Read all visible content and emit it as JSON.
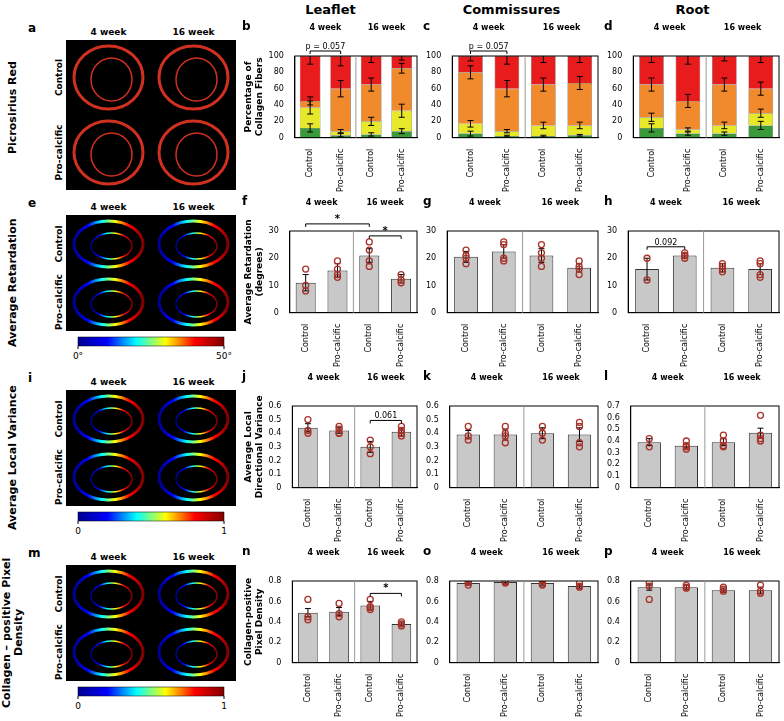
{
  "column_titles": [
    "Leaflet",
    "Commissures",
    "Root"
  ],
  "image_panels": [
    {
      "letter": "a",
      "row_label": "Picrosirius Red",
      "columns": [
        "4 week",
        "16 week"
      ],
      "rows": [
        "Control",
        "Pro-calcific"
      ]
    },
    {
      "letter": "e",
      "row_label": "Average Retardation",
      "columns": [
        "4 week",
        "16 week"
      ],
      "rows": [
        "Control",
        "Pro-calcific"
      ],
      "colorbar": {
        "range": [
          0,
          50
        ],
        "ticks": [
          {
            "value": 0,
            "label": "0°"
          },
          {
            "value": 50,
            "label": "50°"
          }
        ]
      }
    },
    {
      "letter": "i",
      "row_label": "Average Local Variance",
      "columns": [
        "4 week",
        "16 week"
      ],
      "rows": [
        "Control",
        "Pro-calcific"
      ],
      "colorbar": {
        "range": [
          0,
          1
        ],
        "ticks": [
          0,
          1
        ]
      }
    },
    {
      "letter": "m",
      "row_label": "Collagen – positive Pixel Density",
      "columns": [
        "4 week",
        "16 week"
      ],
      "rows": [
        "Control",
        "Pro-calcific"
      ],
      "colorbar": {
        "range": [
          0,
          1
        ],
        "ticks": [
          0,
          1
        ]
      }
    }
  ],
  "chart_data": [
    {
      "letter": "b",
      "type": "bar",
      "stacked": true,
      "grid": false,
      "ylabel": "Percentage of Collagen Fibers",
      "categories": [
        "Control",
        "Pro-calcific",
        "Control",
        "Pro-calcific"
      ],
      "group_labels": [
        "4 week",
        "16 week"
      ],
      "ylim": [
        0,
        100
      ],
      "yticks": [
        0,
        20,
        40,
        60,
        80,
        100
      ],
      "series": [
        {
          "color": "#3a9a3a",
          "values": [
            12,
            3,
            4,
            8
          ],
          "errors": [
            5,
            2,
            2,
            3
          ]
        },
        {
          "color": "#e8e82a",
          "values": [
            25,
            5,
            16,
            25
          ],
          "errors": [
            8,
            2,
            5,
            8
          ]
        },
        {
          "color": "#f08a2c",
          "values": [
            8,
            52,
            45,
            52
          ],
          "errors": [
            5,
            10,
            8,
            6
          ]
        },
        {
          "color": "#e81c1c",
          "values": [
            55,
            40,
            35,
            15
          ],
          "errors": [
            10,
            12,
            8,
            5
          ]
        }
      ],
      "annotations": [
        {
          "text": "p = 0.057",
          "from": 0,
          "to": 1
        }
      ]
    },
    {
      "letter": "c",
      "type": "bar",
      "stacked": true,
      "grid": false,
      "categories": [
        "Control",
        "Pro-calcific",
        "Control",
        "Pro-calcific"
      ],
      "group_labels": [
        "4 week",
        "16 week"
      ],
      "ylim": [
        0,
        100
      ],
      "yticks": [
        0,
        20,
        40,
        60,
        80,
        100
      ],
      "series": [
        {
          "color": "#3a9a3a",
          "values": [
            5,
            2,
            2,
            3
          ],
          "errors": [
            3,
            1,
            1,
            1
          ]
        },
        {
          "color": "#e8e82a",
          "values": [
            12,
            6,
            13,
            12
          ],
          "errors": [
            4,
            2,
            4,
            4
          ]
        },
        {
          "color": "#f08a2c",
          "values": [
            63,
            52,
            50,
            52
          ],
          "errors": [
            8,
            10,
            8,
            8
          ]
        },
        {
          "color": "#e81c1c",
          "values": [
            20,
            40,
            35,
            33
          ],
          "errors": [
            6,
            10,
            8,
            8
          ]
        }
      ],
      "annotations": [
        {
          "text": "p = 0.057",
          "from": 0,
          "to": 1
        }
      ]
    },
    {
      "letter": "d",
      "type": "bar",
      "stacked": true,
      "grid": false,
      "categories": [
        "Control",
        "Pro-calcific",
        "Control",
        "Pro-calcific"
      ],
      "group_labels": [
        "4 week",
        "16 week"
      ],
      "ylim": [
        0,
        100
      ],
      "yticks": [
        0,
        20,
        40,
        60,
        80,
        100
      ],
      "series": [
        {
          "color": "#3a9a3a",
          "values": [
            12,
            5,
            5,
            15
          ],
          "errors": [
            5,
            2,
            2,
            5
          ]
        },
        {
          "color": "#e8e82a",
          "values": [
            13,
            5,
            10,
            15
          ],
          "errors": [
            5,
            2,
            4,
            5
          ]
        },
        {
          "color": "#f08a2c",
          "values": [
            40,
            35,
            50,
            30
          ],
          "errors": [
            8,
            8,
            8,
            8
          ]
        },
        {
          "color": "#e81c1c",
          "values": [
            35,
            55,
            35,
            40
          ],
          "errors": [
            8,
            10,
            6,
            8
          ]
        }
      ]
    },
    {
      "letter": "f",
      "type": "bar",
      "grid": false,
      "color": "#c8c8c8",
      "ylabel": "Average Retardation (degrees)",
      "categories": [
        "Control",
        "Pro-calcific",
        "Control",
        "Pro-calcific"
      ],
      "group_labels": [
        "4 week",
        "16 week"
      ],
      "ylim": [
        0,
        30
      ],
      "yticks": [
        0,
        10,
        20,
        30
      ],
      "values": [
        11,
        15.5,
        21,
        12.5
      ],
      "errors": [
        3,
        2.5,
        2.5,
        1.5
      ],
      "points": [
        [
          16,
          8,
          10
        ],
        [
          19,
          16,
          13,
          14
        ],
        [
          26,
          23,
          19,
          17
        ],
        [
          14,
          12,
          11
        ]
      ],
      "annotations": [
        {
          "text": "*",
          "from": 0,
          "to": 2
        },
        {
          "text": "*",
          "from": 2,
          "to": 3
        }
      ]
    },
    {
      "letter": "g",
      "type": "bar",
      "grid": false,
      "color": "#c8c8c8",
      "categories": [
        "Control",
        "Pro-calcific",
        "Control",
        "Pro-calcific"
      ],
      "group_labels": [
        "4 week",
        "16 week"
      ],
      "ylim": [
        0,
        30
      ],
      "yticks": [
        0,
        10,
        20,
        30
      ],
      "values": [
        20.5,
        22.5,
        21,
        16.5
      ],
      "errors": [
        2,
        2.5,
        2.5,
        1.5
      ],
      "points": [
        [
          18,
          20,
          23,
          21
        ],
        [
          20,
          26,
          25,
          19
        ],
        [
          17,
          25,
          22,
          20
        ],
        [
          14,
          17,
          19,
          16
        ]
      ]
    },
    {
      "letter": "h",
      "type": "bar",
      "grid": false,
      "color": "#c8c8c8",
      "categories": [
        "Control",
        "Pro-calcific",
        "Control",
        "Pro-calcific"
      ],
      "group_labels": [
        "4 week",
        "16 week"
      ],
      "ylim": [
        0,
        30
      ],
      "yticks": [
        0,
        10,
        20,
        30
      ],
      "values": [
        16,
        21,
        16.5,
        16
      ],
      "errors": [
        4,
        1,
        1.5,
        2
      ],
      "points": [
        [
          20,
          12
        ],
        [
          22,
          20,
          21,
          21
        ],
        [
          15,
          18,
          17,
          16
        ],
        [
          13,
          18,
          19,
          14
        ]
      ],
      "annotations": [
        {
          "text": "0.092",
          "from": 0,
          "to": 1
        }
      ]
    },
    {
      "letter": "j",
      "type": "bar",
      "grid": false,
      "color": "#c8c8c8",
      "ylabel": "Average Local Directional Variance",
      "categories": [
        "Control",
        "Pro-calcific",
        "Control",
        "Pro-calcific"
      ],
      "group_labels": [
        "4 week",
        "16 week"
      ],
      "ylim": [
        0,
        0.6
      ],
      "yticks": [
        0,
        0.1,
        0.2,
        0.3,
        0.4,
        0.5,
        0.6
      ],
      "values": [
        0.44,
        0.42,
        0.3,
        0.41
      ],
      "errors": [
        0.03,
        0.02,
        0.04,
        0.03
      ],
      "points": [
        [
          0.5,
          0.4,
          0.42
        ],
        [
          0.45,
          0.4,
          0.43,
          0.4
        ],
        [
          0.35,
          0.25,
          0.3
        ],
        [
          0.45,
          0.4,
          0.42,
          0.38
        ]
      ],
      "annotations": [
        {
          "text": "0.061",
          "from": 2,
          "to": 3
        }
      ]
    },
    {
      "letter": "k",
      "type": "bar",
      "grid": false,
      "color": "#c8c8c8",
      "categories": [
        "Control",
        "Pro-calcific",
        "Control",
        "Pro-calcific"
      ],
      "group_labels": [
        "4 week",
        "16 week"
      ],
      "ylim": [
        0,
        0.6
      ],
      "yticks": [
        0,
        0.1,
        0.2,
        0.3,
        0.4,
        0.5,
        0.6
      ],
      "values": [
        0.39,
        0.39,
        0.4,
        0.39
      ],
      "errors": [
        0.03,
        0.04,
        0.04,
        0.05
      ],
      "points": [
        [
          0.45,
          0.35,
          0.38
        ],
        [
          0.45,
          0.4,
          0.33,
          0.38
        ],
        [
          0.45,
          0.4,
          0.35
        ],
        [
          0.48,
          0.45,
          0.3,
          0.33
        ]
      ]
    },
    {
      "letter": "l",
      "type": "bar",
      "grid": false,
      "color": "#c8c8c8",
      "categories": [
        "Control",
        "Pro-calcific",
        "Control",
        "Pro-calcific"
      ],
      "group_labels": [
        "4 week",
        "16 week"
      ],
      "ylim": [
        0,
        0.7
      ],
      "yticks": [
        0,
        0.1,
        0.2,
        0.3,
        0.4,
        0.5,
        0.6,
        0.7
      ],
      "values": [
        0.39,
        0.36,
        0.39,
        0.47
      ],
      "errors": [
        0.03,
        0.02,
        0.03,
        0.04
      ],
      "points": [
        [
          0.42,
          0.35
        ],
        [
          0.4,
          0.36,
          0.35,
          0.33
        ],
        [
          0.45,
          0.4,
          0.36,
          0.35
        ],
        [
          0.62,
          0.45,
          0.42,
          0.4
        ]
      ]
    },
    {
      "letter": "n",
      "type": "bar",
      "grid": false,
      "color": "#c8c8c8",
      "ylabel": "Collagen-positive Pixel Density",
      "categories": [
        "Control",
        "Pro-calcific",
        "Control",
        "Pro-calcific"
      ],
      "group_labels": [
        "4 week",
        "16 week"
      ],
      "ylim": [
        0,
        0.8
      ],
      "yticks": [
        0,
        0.2,
        0.4,
        0.6,
        0.8
      ],
      "values": [
        0.49,
        0.5,
        0.56,
        0.38
      ],
      "errors": [
        0.04,
        0.04,
        0.04,
        0.02
      ],
      "points": [
        [
          0.62,
          0.45,
          0.42
        ],
        [
          0.58,
          0.48,
          0.45
        ],
        [
          0.62,
          0.55,
          0.52,
          0.54
        ],
        [
          0.4,
          0.38,
          0.36
        ]
      ],
      "annotations": [
        {
          "text": "*",
          "from": 2,
          "to": 3
        }
      ]
    },
    {
      "letter": "o",
      "type": "bar",
      "grid": false,
      "color": "#c8c8c8",
      "categories": [
        "Control",
        "Pro-calcific",
        "Control",
        "Pro-calcific"
      ],
      "group_labels": [
        "4 week",
        "16 week"
      ],
      "ylim": [
        0,
        0.8
      ],
      "yticks": [
        0,
        0.2,
        0.4,
        0.6,
        0.8
      ],
      "values": [
        0.78,
        0.79,
        0.78,
        0.75
      ],
      "errors": [
        0.02,
        0.02,
        0.02,
        0.02
      ],
      "points": [
        [
          0.8,
          0.76,
          0.79
        ],
        [
          0.8,
          0.78,
          0.79
        ],
        [
          0.8,
          0.76,
          0.77
        ],
        [
          0.78,
          0.74,
          0.75
        ]
      ]
    },
    {
      "letter": "p",
      "type": "bar",
      "grid": false,
      "color": "#c8c8c8",
      "categories": [
        "Control",
        "Pro-calcific",
        "Control",
        "Pro-calcific"
      ],
      "group_labels": [
        "4 week",
        "16 week"
      ],
      "ylim": [
        0,
        0.8
      ],
      "yticks": [
        0,
        0.2,
        0.4,
        0.6,
        0.8
      ],
      "values": [
        0.74,
        0.74,
        0.71,
        0.71
      ],
      "errors": [
        0.03,
        0.02,
        0.02,
        0.03
      ],
      "points": [
        [
          0.78,
          0.62,
          0.75
        ],
        [
          0.76,
          0.73,
          0.74
        ],
        [
          0.74,
          0.7,
          0.72
        ],
        [
          0.76,
          0.68,
          0.7
        ]
      ]
    }
  ]
}
